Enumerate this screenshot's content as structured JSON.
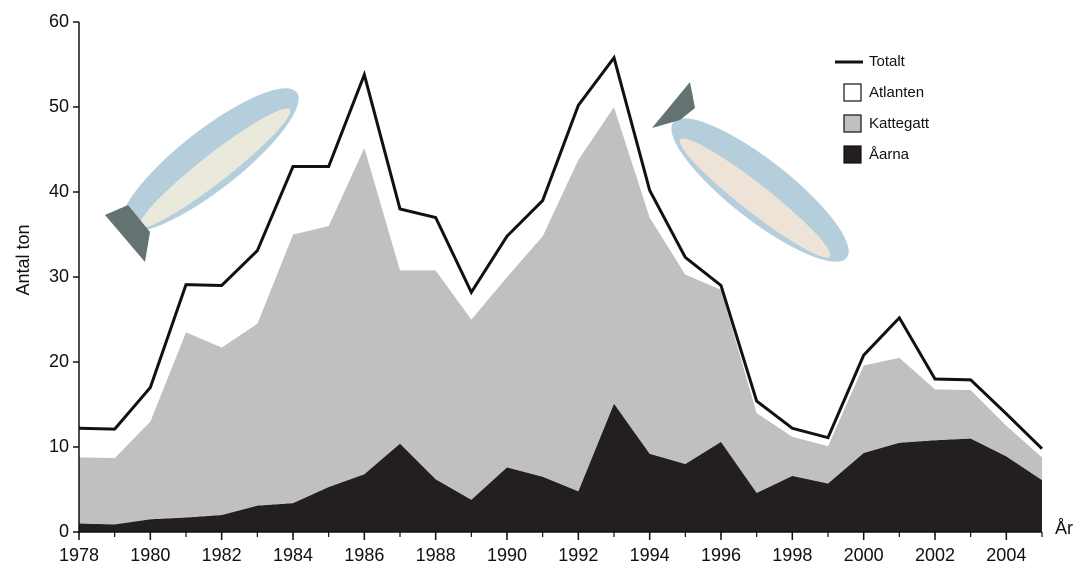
{
  "chart_data": {
    "type": "area",
    "stacked": true,
    "x_label": "År",
    "y_label": "Antal ton",
    "x": [
      1978,
      1979,
      1980,
      1981,
      1982,
      1983,
      1984,
      1985,
      1986,
      1987,
      1988,
      1989,
      1990,
      1991,
      1992,
      1993,
      1994,
      1995,
      1996,
      1997,
      1998,
      1999,
      2000,
      2001,
      2002,
      2003,
      2004,
      2005
    ],
    "xlim": [
      1978,
      2005
    ],
    "xticks": [
      1978,
      1980,
      1982,
      1984,
      1986,
      1988,
      1990,
      1992,
      1994,
      1996,
      1998,
      2000,
      2002,
      2004
    ],
    "ylim": [
      0,
      60
    ],
    "yticks": [
      0,
      10,
      20,
      30,
      40,
      50,
      60
    ],
    "legend": "upper right",
    "series": [
      {
        "name": "Totalt",
        "type": "line",
        "color": "#111111",
        "values": [
          12.2,
          12.1,
          17,
          29.1,
          29,
          33.1,
          43,
          43,
          53.8,
          38,
          37,
          28.2,
          34.8,
          39,
          50.2,
          55.8,
          40.2,
          32.3,
          29,
          15.4,
          12.2,
          11.1,
          20.8,
          25.2,
          18,
          17.9,
          13.9,
          9.8
        ]
      },
      {
        "name": "Atlanten",
        "color": "#ffffff",
        "values": [
          3.4,
          3.4,
          4,
          5.6,
          7.3,
          8.6,
          8,
          7,
          8.6,
          7.2,
          6.2,
          3.2,
          4.8,
          4.2,
          6.4,
          5.8,
          3.2,
          2,
          0.5,
          1.4,
          1,
          1,
          1.2,
          4.7,
          1.2,
          1.2,
          1.4,
          1
        ]
      },
      {
        "name": "Kattegatt",
        "color": "#c0c0c0",
        "values": [
          7.8,
          7.8,
          11.5,
          21.8,
          19.7,
          21.4,
          31.6,
          30.7,
          38.4,
          20.4,
          24.6,
          21.2,
          22.4,
          28.3,
          39,
          34.9,
          27.8,
          22.3,
          17.9,
          9.4,
          4.6,
          4.4,
          10.3,
          10,
          6,
          5.7,
          3.6,
          2.7
        ]
      },
      {
        "name": "Åarna",
        "color": "#231f20",
        "values": [
          1,
          0.9,
          1.5,
          1.7,
          2,
          3.1,
          3.4,
          5.3,
          6.8,
          10.4,
          6.2,
          3.8,
          7.6,
          6.5,
          4.8,
          15.1,
          9.2,
          8,
          10.6,
          4.6,
          6.6,
          5.7,
          9.3,
          10.5,
          10.8,
          11,
          8.9,
          6.1
        ]
      }
    ]
  }
}
